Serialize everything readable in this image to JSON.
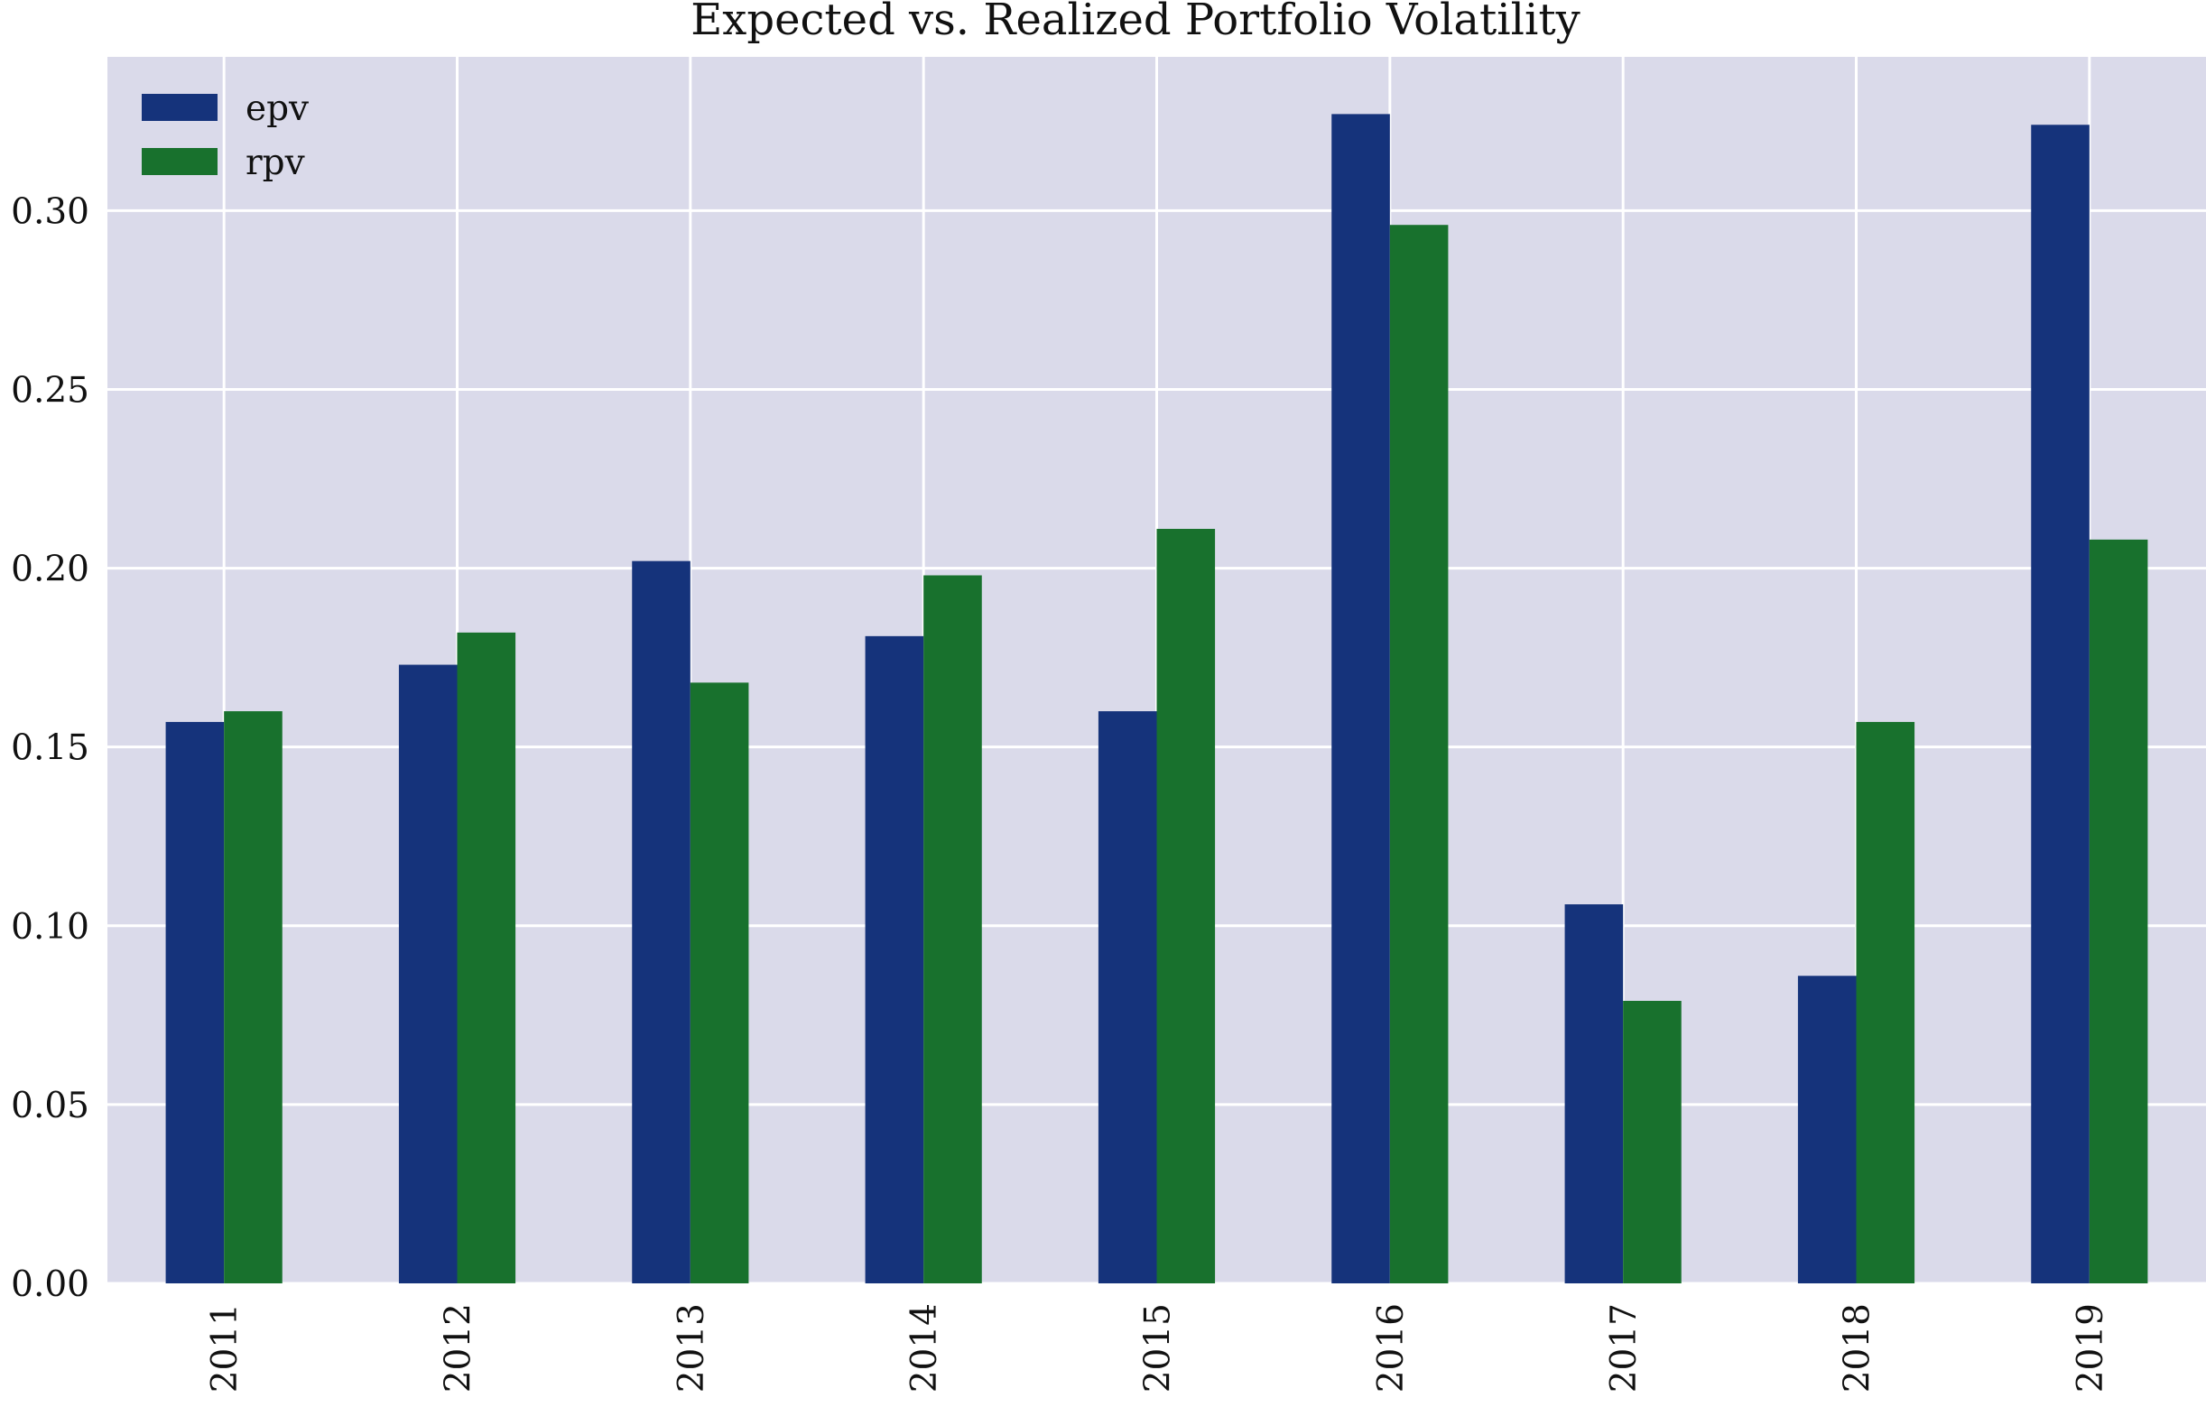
{
  "chart_data": {
    "type": "bar",
    "title": "Expected vs. Realized Portfolio Volatility",
    "xlabel": "",
    "ylabel": "",
    "categories": [
      "2011",
      "2012",
      "2013",
      "2014",
      "2015",
      "2016",
      "2017",
      "2018",
      "2019"
    ],
    "series": [
      {
        "name": "epv",
        "color": "#15337b",
        "values": [
          0.157,
          0.173,
          0.202,
          0.181,
          0.16,
          0.327,
          0.106,
          0.086,
          0.324
        ]
      },
      {
        "name": "rpv",
        "color": "#18712d",
        "values": [
          0.16,
          0.182,
          0.168,
          0.198,
          0.211,
          0.296,
          0.079,
          0.157,
          0.208
        ]
      }
    ],
    "ylim": [
      0,
      0.343
    ],
    "yticks": [
      "0.00",
      "0.05",
      "0.10",
      "0.15",
      "0.20",
      "0.25",
      "0.30"
    ],
    "grid": true,
    "legend_position": "top-left",
    "background": "#dadaea",
    "gridline_color": "#ffffff",
    "x_tick_rotation": "vertical"
  }
}
